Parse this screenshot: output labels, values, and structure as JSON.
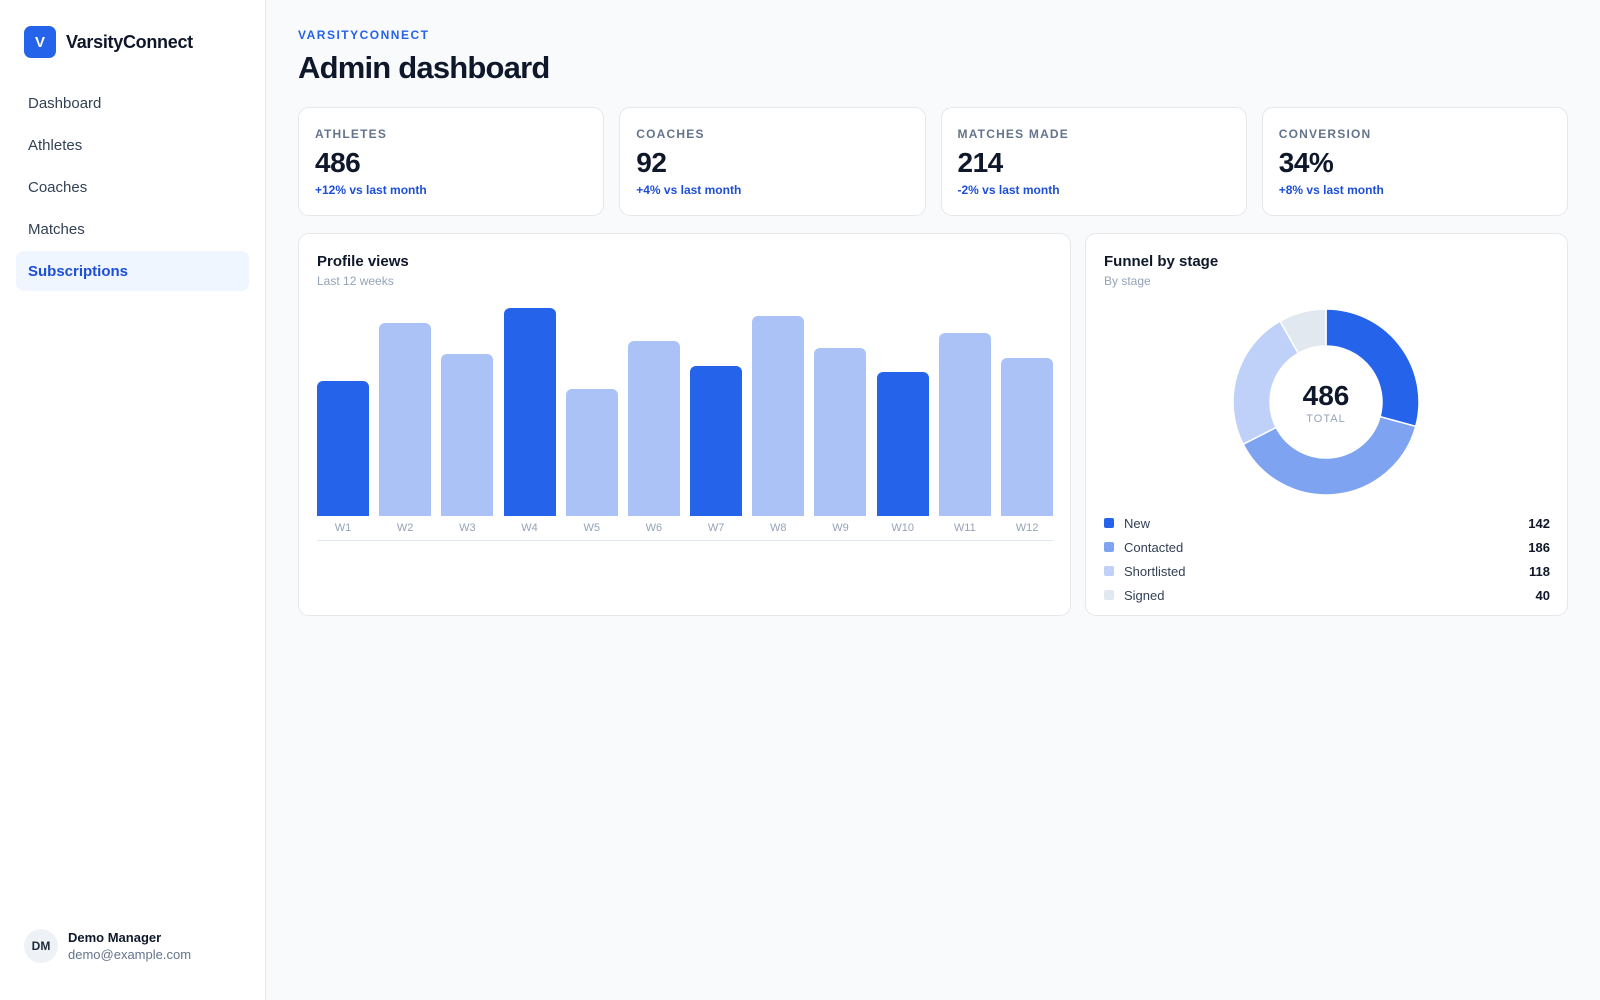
{
  "brand": {
    "logo_letter": "V",
    "name": "VarsityConnect"
  },
  "nav": {
    "items": [
      {
        "label": "Dashboard",
        "active": false
      },
      {
        "label": "Athletes",
        "active": false
      },
      {
        "label": "Coaches",
        "active": false
      },
      {
        "label": "Matches",
        "active": false
      },
      {
        "label": "Subscriptions",
        "active": true
      }
    ]
  },
  "user": {
    "initials": "DM",
    "name": "Demo Manager",
    "email": "demo@example.com"
  },
  "header": {
    "eyebrow": "VARSITYCONNECT",
    "title": "Admin dashboard"
  },
  "stats": [
    {
      "label": "ATHLETES",
      "value": "486",
      "delta": "+12% vs last month"
    },
    {
      "label": "COACHES",
      "value": "92",
      "delta": "+4% vs last month"
    },
    {
      "label": "MATCHES MADE",
      "value": "214",
      "delta": "-2% vs last month"
    },
    {
      "label": "CONVERSION",
      "value": "34%",
      "delta": "+8% vs last month"
    }
  ],
  "views_card": {
    "title": "Profile views",
    "subtitle": "Last 12 weeks"
  },
  "funnel_card": {
    "title": "Funnel by stage",
    "subtitle": "By stage",
    "total": "486",
    "total_label": "TOTAL"
  },
  "colors": {
    "accent": "#2563eb",
    "accent_light": "#aac2f6"
  },
  "chart_data": [
    {
      "type": "bar",
      "categories": [
        "W1",
        "W2",
        "W3",
        "W4",
        "W5",
        "W6",
        "W7",
        "W8",
        "W9",
        "W10",
        "W11",
        "W12"
      ],
      "values": [
        65,
        93,
        78,
        100,
        61,
        84,
        72,
        96,
        81,
        69,
        88,
        76
      ],
      "highlighted": [
        true,
        false,
        false,
        true,
        false,
        false,
        true,
        false,
        false,
        true,
        false,
        false
      ],
      "ylim": [
        0,
        100
      ]
    },
    {
      "type": "pie",
      "categories": [
        "New",
        "Contacted",
        "Shortlisted",
        "Signed"
      ],
      "values": [
        142,
        186,
        118,
        40
      ],
      "colors": [
        "#2563eb",
        "#7ea3f1",
        "#bfd1f9",
        "#e2e8f0"
      ]
    }
  ]
}
